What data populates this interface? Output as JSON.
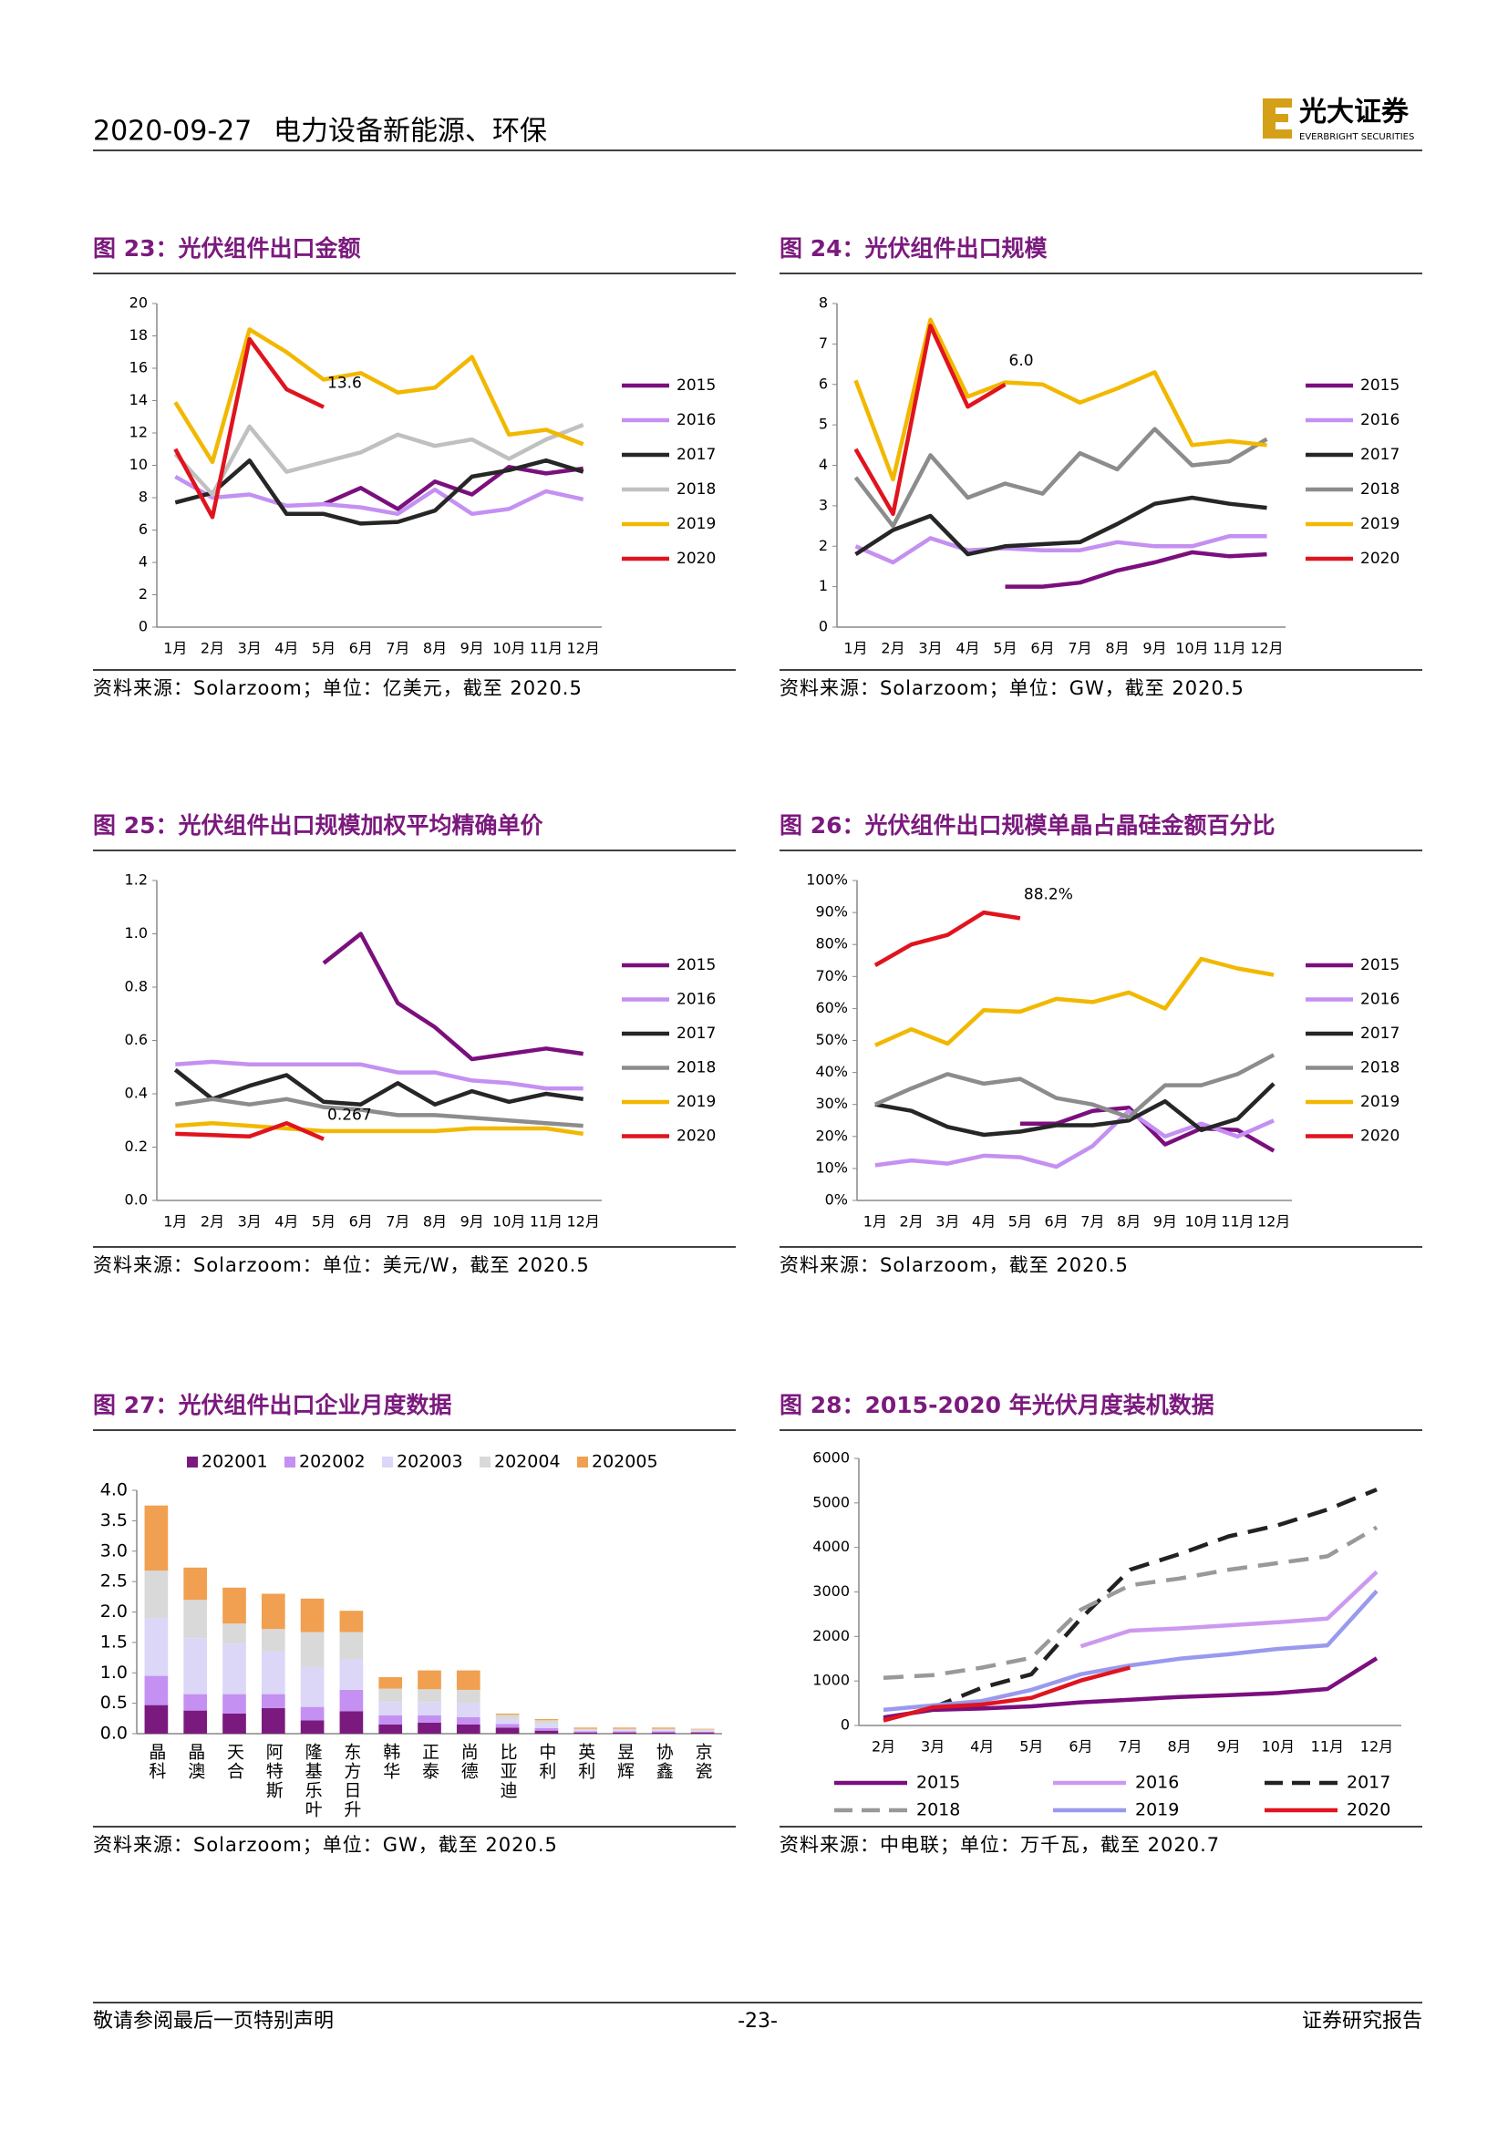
{
  "header": {
    "date": "2020-09-27",
    "section": "电力设备新能源、环保",
    "logo": "光大证券",
    "logo_en": "EVERBRIGHT SECURITIES"
  },
  "chart_data": [
    {
      "type": "line",
      "title": "图 23：光伏组件出口金额",
      "source": "资料来源：Solarzoom；单位：亿美元，截至 2020.5",
      "legend": "right",
      "annotation": "13.6",
      "categories": [
        "1月",
        "2月",
        "3月",
        "4月",
        "5月",
        "6月",
        "7月",
        "8月",
        "9月",
        "10月",
        "11月",
        "12月"
      ],
      "ylim": [
        0,
        20
      ],
      "yticks": [
        0,
        2,
        4,
        6,
        8,
        10,
        12,
        14,
        16,
        18,
        20
      ],
      "series": [
        {
          "name": "2015",
          "color": "#7b0f7e",
          "values": [
            null,
            null,
            null,
            null,
            7.6,
            8.6,
            7.3,
            9.0,
            8.2,
            9.9,
            9.5,
            9.8
          ]
        },
        {
          "name": "2016",
          "color": "#c490f2",
          "values": [
            9.3,
            8.0,
            8.2,
            7.5,
            7.6,
            7.4,
            7.0,
            8.5,
            7.0,
            7.3,
            8.4,
            7.9
          ]
        },
        {
          "name": "2017",
          "color": "#262626",
          "values": [
            7.7,
            8.3,
            10.3,
            7.0,
            7.0,
            6.4,
            6.5,
            7.2,
            9.3,
            9.7,
            10.3,
            9.6
          ]
        },
        {
          "name": "2018",
          "color": "#c0c0c0",
          "values": [
            10.7,
            8.2,
            12.4,
            9.6,
            10.2,
            10.8,
            11.9,
            11.2,
            11.6,
            10.4,
            11.6,
            12.5
          ]
        },
        {
          "name": "2019",
          "color": "#f2b800",
          "values": [
            13.9,
            10.2,
            18.4,
            17.0,
            15.3,
            15.7,
            14.5,
            14.8,
            16.7,
            11.9,
            12.2,
            11.3
          ]
        },
        {
          "name": "2020",
          "color": "#e0141e",
          "values": [
            11.0,
            6.8,
            17.8,
            14.7,
            13.6,
            null,
            null,
            null,
            null,
            null,
            null,
            null
          ]
        }
      ]
    },
    {
      "type": "line",
      "title": "图 24：光伏组件出口规模",
      "source": "资料来源：Solarzoom；单位：GW，截至 2020.5",
      "legend": "right",
      "annotation": "6.0",
      "categories": [
        "1月",
        "2月",
        "3月",
        "4月",
        "5月",
        "6月",
        "7月",
        "8月",
        "9月",
        "10月",
        "11月",
        "12月"
      ],
      "ylim": [
        0,
        8
      ],
      "yticks": [
        0,
        1,
        2,
        3,
        4,
        5,
        6,
        7,
        8
      ],
      "series": [
        {
          "name": "2015",
          "color": "#7b0f7e",
          "values": [
            null,
            null,
            null,
            null,
            1.0,
            1.0,
            1.1,
            1.4,
            1.6,
            1.85,
            1.75,
            1.8
          ]
        },
        {
          "name": "2016",
          "color": "#c490f2",
          "values": [
            2.0,
            1.6,
            2.2,
            1.9,
            1.95,
            1.9,
            1.9,
            2.1,
            2.0,
            2.0,
            2.25,
            2.25
          ]
        },
        {
          "name": "2017",
          "color": "#262626",
          "values": [
            1.8,
            2.4,
            2.75,
            1.8,
            2.0,
            2.05,
            2.1,
            2.55,
            3.05,
            3.2,
            3.05,
            2.95
          ]
        },
        {
          "name": "2018",
          "color": "#8c8c8c",
          "values": [
            3.7,
            2.5,
            4.25,
            3.2,
            3.55,
            3.3,
            4.3,
            3.9,
            4.9,
            4.0,
            4.1,
            4.65
          ]
        },
        {
          "name": "2019",
          "color": "#f2b800",
          "values": [
            6.1,
            3.65,
            7.6,
            5.7,
            6.05,
            6.0,
            5.55,
            5.9,
            6.3,
            4.5,
            4.6,
            4.5
          ]
        },
        {
          "name": "2020",
          "color": "#e0141e",
          "values": [
            4.4,
            2.8,
            7.45,
            5.45,
            6.0,
            null,
            null,
            null,
            null,
            null,
            null,
            null
          ]
        }
      ]
    },
    {
      "type": "line",
      "title": "图 25：光伏组件出口规模加权平均精确单价",
      "source": "资料来源：Solarzoom：单位：美元/W，截至 2020.5",
      "legend": "right",
      "annotation": "0.267",
      "categories": [
        "1月",
        "2月",
        "3月",
        "4月",
        "5月",
        "6月",
        "7月",
        "8月",
        "9月",
        "10月",
        "11月",
        "12月"
      ],
      "ylim": [
        0,
        1.2
      ],
      "yticks": [
        {
          "value": 0,
          "label": "0.0"
        },
        0.2,
        0.4,
        0.6,
        0.8,
        {
          "value": 1,
          "label": "1.0"
        },
        1.2
      ],
      "series": [
        {
          "name": "2015",
          "color": "#7b0f7e",
          "values": [
            null,
            null,
            null,
            null,
            0.89,
            1.0,
            0.74,
            0.65,
            0.53,
            0.55,
            0.57,
            0.55
          ]
        },
        {
          "name": "2016",
          "color": "#c490f2",
          "values": [
            0.51,
            0.52,
            0.51,
            0.51,
            0.51,
            0.51,
            0.48,
            0.48,
            0.45,
            0.44,
            0.42,
            0.42
          ]
        },
        {
          "name": "2017",
          "color": "#262626",
          "values": [
            0.49,
            0.38,
            0.43,
            0.47,
            0.37,
            0.36,
            0.44,
            0.36,
            0.41,
            0.37,
            0.4,
            0.38
          ]
        },
        {
          "name": "2018",
          "color": "#8c8c8c",
          "values": [
            0.36,
            0.38,
            0.36,
            0.38,
            0.35,
            0.34,
            0.32,
            0.32,
            0.31,
            0.3,
            0.29,
            0.28
          ]
        },
        {
          "name": "2019",
          "color": "#f2b800",
          "values": [
            0.28,
            0.29,
            0.28,
            0.27,
            0.26,
            0.26,
            0.26,
            0.26,
            0.27,
            0.27,
            0.27,
            0.25
          ]
        },
        {
          "name": "2020",
          "color": "#e0141e",
          "values": [
            0.25,
            0.245,
            0.24,
            0.29,
            0.23,
            null,
            null,
            null,
            null,
            null,
            null,
            null
          ]
        }
      ]
    },
    {
      "type": "line",
      "title": "图 26：光伏组件出口规模单晶占晶硅金额百分比",
      "source": "资料来源：Solarzoom，截至 2020.5",
      "legend": "right",
      "annotation": "88.2%",
      "categories": [
        "1月",
        "2月",
        "3月",
        "4月",
        "5月",
        "6月",
        "7月",
        "8月",
        "9月",
        "10月",
        "11月",
        "12月"
      ],
      "ylim": [
        0,
        100
      ],
      "yticks": [
        {
          "value": 0,
          "label": "0%"
        },
        {
          "value": 10,
          "label": "10%"
        },
        {
          "value": 20,
          "label": "20%"
        },
        {
          "value": 30,
          "label": "30%"
        },
        {
          "value": 40,
          "label": "40%"
        },
        {
          "value": 50,
          "label": "50%"
        },
        {
          "value": 60,
          "label": "60%"
        },
        {
          "value": 70,
          "label": "70%"
        },
        {
          "value": 80,
          "label": "80%"
        },
        {
          "value": 90,
          "label": "90%"
        },
        {
          "value": 100,
          "label": "100%"
        }
      ],
      "series": [
        {
          "name": "2015",
          "color": "#7b0f7e",
          "values": [
            null,
            null,
            null,
            null,
            24,
            24,
            28,
            29,
            17.5,
            22.5,
            22,
            15.5
          ]
        },
        {
          "name": "2016",
          "color": "#c490f2",
          "values": [
            11,
            12.5,
            11.5,
            14,
            13.5,
            10.5,
            17,
            28,
            20,
            24,
            20,
            25
          ]
        },
        {
          "name": "2017",
          "color": "#262626",
          "values": [
            30,
            28,
            23,
            20.5,
            21.5,
            23.5,
            23.5,
            25,
            31,
            22,
            25.5,
            36.5
          ]
        },
        {
          "name": "2018",
          "color": "#8c8c8c",
          "values": [
            30,
            35,
            39.5,
            36.5,
            38,
            32,
            30,
            26,
            36,
            36,
            39.5,
            45.5
          ]
        },
        {
          "name": "2019",
          "color": "#f2b800",
          "values": [
            48.5,
            53.5,
            49,
            59.5,
            59,
            63,
            62,
            65,
            60,
            75.5,
            72.5,
            70.5
          ]
        },
        {
          "name": "2020",
          "color": "#e0141e",
          "values": [
            73.5,
            80,
            83,
            90,
            88.2,
            null,
            null,
            null,
            null,
            null,
            null,
            null
          ]
        }
      ]
    },
    {
      "type": "bar",
      "stacked": true,
      "title": "图 27：光伏组件出口企业月度数据",
      "source": "资料来源：Solarzoom；单位：GW，截至 2020.5",
      "legend": "top",
      "categories": [
        "晶科",
        "晶澳",
        "天合",
        "阿特斯",
        "隆基乐叶",
        "东方日升",
        "韩华",
        "正泰",
        "尚德",
        "比亚迪",
        "中利",
        "英利",
        "昱辉",
        "协鑫",
        "京瓷"
      ],
      "ylim": [
        0,
        4
      ],
      "yticks": [
        {
          "value": 0,
          "label": "0.0"
        },
        0.5,
        {
          "value": 1,
          "label": "1.0"
        },
        1.5,
        {
          "value": 2,
          "label": "2.0"
        },
        2.5,
        {
          "value": 3,
          "label": "3.0"
        },
        3.5,
        {
          "value": 4,
          "label": "4.0"
        }
      ],
      "series": [
        {
          "name": "202001",
          "color": "#7b1a7e",
          "values": [
            0.47,
            0.38,
            0.33,
            0.42,
            0.22,
            0.37,
            0.15,
            0.18,
            0.15,
            0.1,
            0.05,
            0.02,
            0.02,
            0.02,
            0.02
          ]
        },
        {
          "name": "202002",
          "color": "#c490f2",
          "values": [
            0.48,
            0.27,
            0.32,
            0.23,
            0.22,
            0.35,
            0.15,
            0.12,
            0.12,
            0.06,
            0.04,
            0.02,
            0.02,
            0.02,
            0.01
          ]
        },
        {
          "name": "202003",
          "color": "#dcd6f7",
          "values": [
            0.95,
            0.92,
            0.83,
            0.7,
            0.66,
            0.5,
            0.22,
            0.22,
            0.23,
            0.08,
            0.07,
            0.02,
            0.02,
            0.02,
            0.02
          ]
        },
        {
          "name": "202004",
          "color": "#d9d9d9",
          "values": [
            0.78,
            0.63,
            0.33,
            0.37,
            0.57,
            0.45,
            0.22,
            0.21,
            0.22,
            0.07,
            0.06,
            0.02,
            0.02,
            0.02,
            0.02
          ]
        },
        {
          "name": "202005",
          "color": "#f0a050",
          "values": [
            1.07,
            0.53,
            0.59,
            0.58,
            0.55,
            0.35,
            0.19,
            0.31,
            0.32,
            0.02,
            0.02,
            0.02,
            0.02,
            0.02,
            0.01
          ]
        }
      ]
    },
    {
      "type": "line",
      "title": "图 28：2015-2020 年光伏月度装机数据",
      "source": "资料来源：中电联；单位：万千瓦，截至 2020.7",
      "legend": "bottom",
      "categories": [
        "2月",
        "3月",
        "4月",
        "5月",
        "6月",
        "7月",
        "8月",
        "9月",
        "10月",
        "11月",
        "12月"
      ],
      "ylim": [
        0,
        6000
      ],
      "yticks": [
        0,
        1000,
        2000,
        3000,
        4000,
        5000,
        6000
      ],
      "series": [
        {
          "name": "2015",
          "color": "#7b0f7e",
          "values": [
            180,
            350,
            380,
            430,
            520,
            580,
            640,
            680,
            730,
            820,
            1510
          ]
        },
        {
          "name": "2016",
          "color": "#cc99f0",
          "values": [
            null,
            null,
            null,
            null,
            1780,
            2130,
            2180,
            2250,
            2320,
            2400,
            3450
          ]
        },
        {
          "name": "2017",
          "color": "#222222",
          "dash": true,
          "values": [
            null,
            400,
            850,
            1150,
            2400,
            3500,
            3850,
            4250,
            4500,
            4850,
            5300
          ]
        },
        {
          "name": "2018",
          "color": "#999999",
          "dash": true,
          "values": [
            1070,
            1130,
            1300,
            1520,
            2600,
            3150,
            3300,
            3500,
            3650,
            3800,
            4450
          ]
        },
        {
          "name": "2019",
          "color": "#9999ee",
          "values": [
            350,
            450,
            550,
            800,
            1150,
            1350,
            1500,
            1600,
            1720,
            1800,
            3020
          ]
        },
        {
          "name": "2020",
          "color": "#e0141e",
          "values": [
            110,
            410,
            470,
            620,
            1010,
            1300,
            null,
            null,
            null,
            null,
            null
          ]
        }
      ]
    }
  ],
  "footer": {
    "left": "敬请参阅最后一页特别声明",
    "center": "-23-",
    "right": "证券研究报告"
  }
}
